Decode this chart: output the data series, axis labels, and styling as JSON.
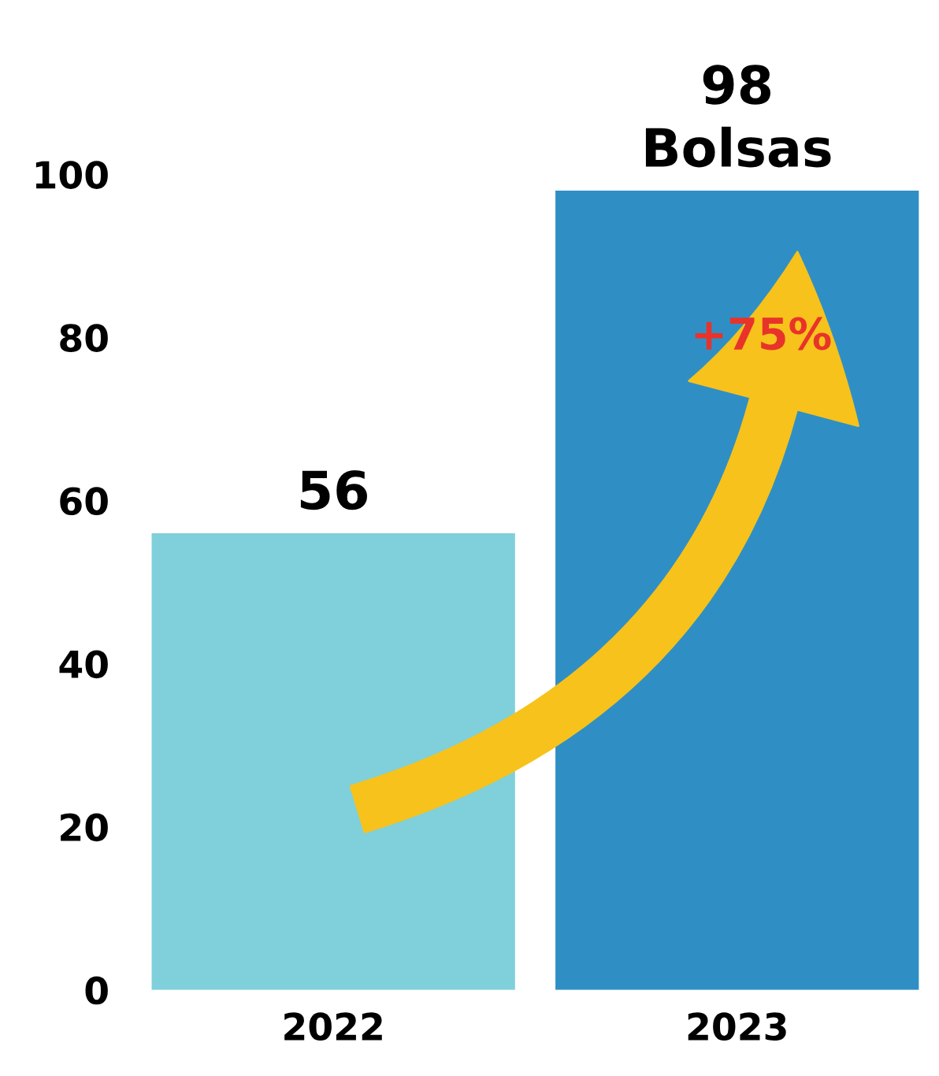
{
  "chart_data": {
    "type": "bar",
    "categories": [
      "2022",
      "2023"
    ],
    "values": [
      56,
      98
    ],
    "colors": [
      "#7fd0da",
      "#2f8fc5"
    ],
    "value_labels": [
      "56",
      "98\nBolsas"
    ],
    "annotations": [
      "+75%"
    ],
    "ylim": [
      0,
      100
    ],
    "yticks": [
      0,
      20,
      40,
      60,
      80,
      100
    ],
    "grid": false,
    "legend": false
  }
}
